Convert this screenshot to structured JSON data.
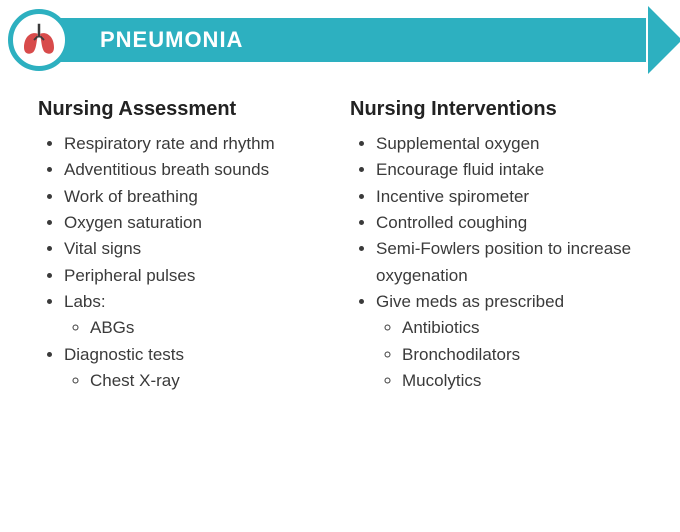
{
  "header": {
    "title": "PNEUMONIA",
    "banner_color": "#2db0c0",
    "icon_name": "lungs-icon",
    "lung_fill": "#d84b4b",
    "title_color": "#ffffff"
  },
  "columns": [
    {
      "title": "Nursing Assessment",
      "items": [
        {
          "text": "Respiratory rate and rhythm"
        },
        {
          "text": "Adventitious breath sounds"
        },
        {
          "text": "Work of breathing"
        },
        {
          "text": "Oxygen saturation"
        },
        {
          "text": "Vital signs"
        },
        {
          "text": "Peripheral pulses"
        },
        {
          "text": "Labs:",
          "sub": [
            "ABGs"
          ]
        },
        {
          "text": "Diagnostic tests",
          "sub": [
            "Chest X-ray"
          ]
        }
      ]
    },
    {
      "title": "Nursing Interventions",
      "items": [
        {
          "text": "Supplemental oxygen"
        },
        {
          "text": "Encourage fluid intake"
        },
        {
          "text": "Incentive spirometer"
        },
        {
          "text": "Controlled coughing"
        },
        {
          "text": "Semi-Fowlers position to increase oxygenation"
        },
        {
          "text": "Give meds as prescribed",
          "sub": [
            "Antibiotics",
            "Bronchodilators",
            "Mucolytics"
          ]
        }
      ]
    }
  ],
  "typography": {
    "title_fontsize": 22,
    "heading_fontsize": 20,
    "body_fontsize": 17,
    "body_color": "#3a3a3a",
    "heading_color": "#222222"
  },
  "background_color": "#ffffff"
}
